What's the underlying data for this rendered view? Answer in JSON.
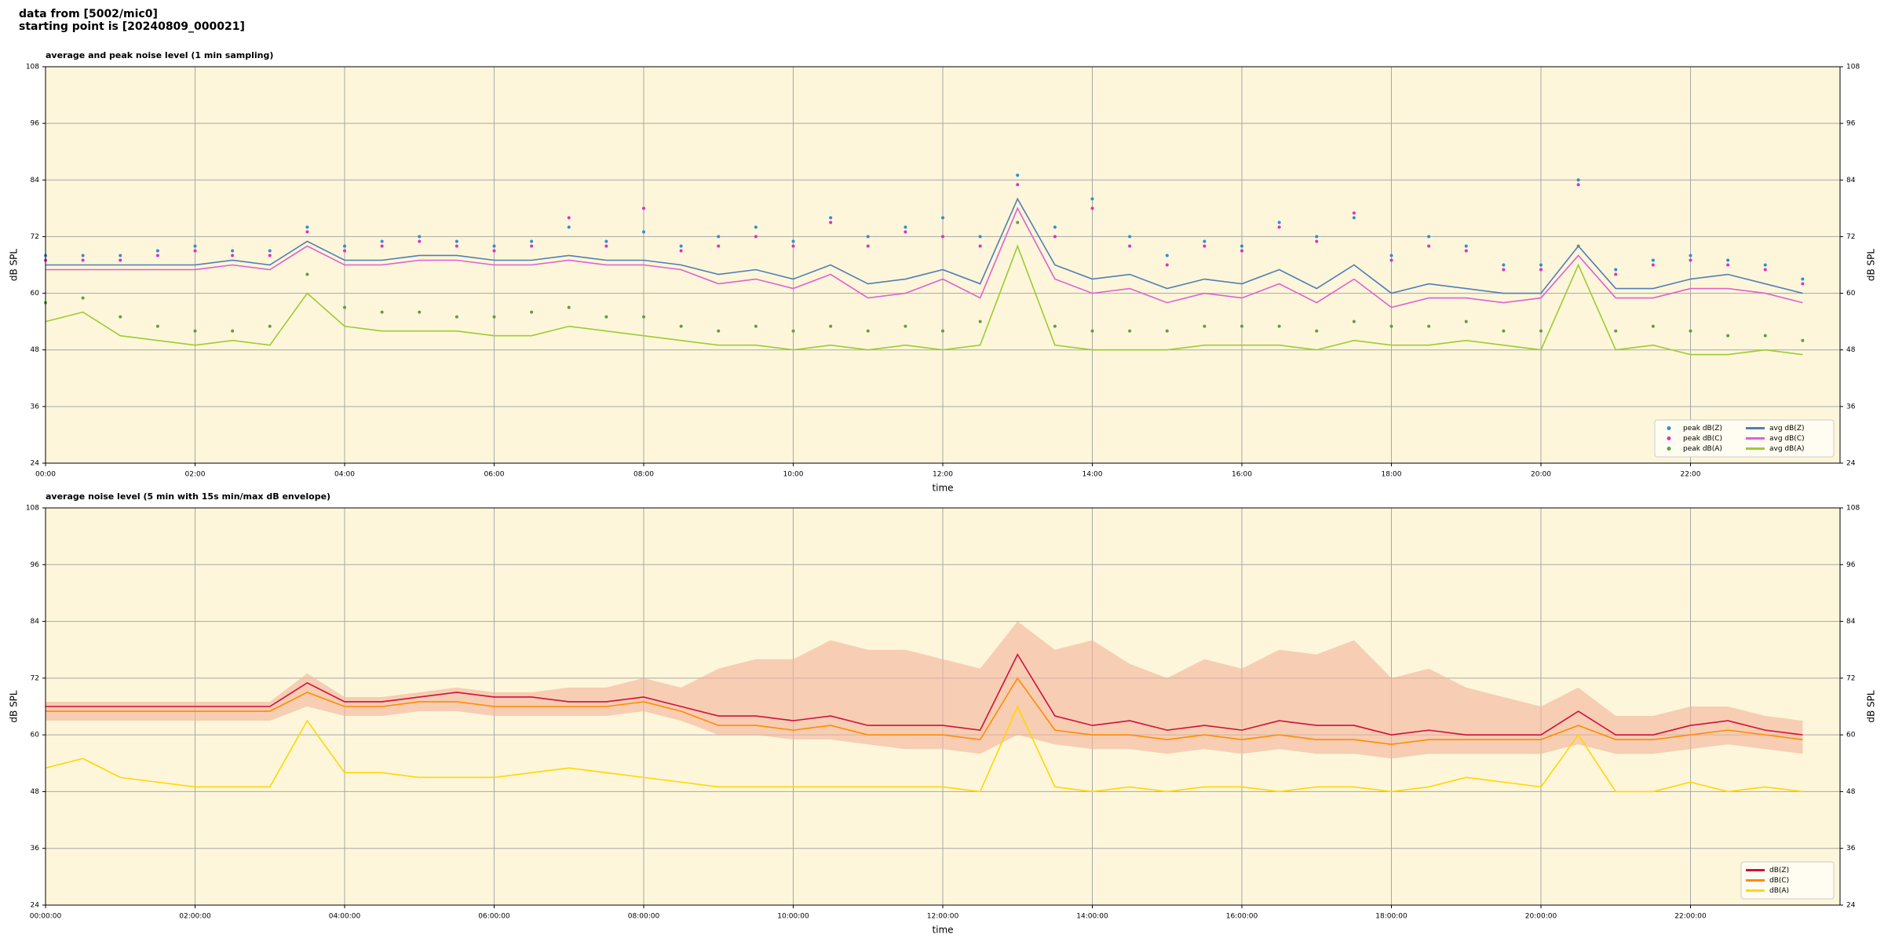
{
  "header": [
    "data from [5002/mic0]",
    "starting point is [20240809_000021]"
  ],
  "chart_data": [
    {
      "type": "line",
      "title": "average and peak noise level (1 min sampling)",
      "xlabel": "time",
      "ylabel": "dB SPL",
      "background": "#fdf6da",
      "grid": true,
      "legend": "lower right",
      "legend_ncol": 2,
      "xlim": [
        0,
        24
      ],
      "ylim": [
        24,
        108
      ],
      "yticks": [
        24,
        36,
        48,
        60,
        72,
        84,
        96,
        108
      ],
      "xticks": [
        {
          "value": 0,
          "label": "00:00"
        },
        {
          "value": 2,
          "label": "02:00"
        },
        {
          "value": 4,
          "label": "04:00"
        },
        {
          "value": 6,
          "label": "06:00"
        },
        {
          "value": 8,
          "label": "08:00"
        },
        {
          "value": 10,
          "label": "10:00"
        },
        {
          "value": 12,
          "label": "12:00"
        },
        {
          "value": 14,
          "label": "14:00"
        },
        {
          "value": 16,
          "label": "16:00"
        },
        {
          "value": 18,
          "label": "18:00"
        },
        {
          "value": 20,
          "label": "20:00"
        },
        {
          "value": 22,
          "label": "22:00"
        }
      ],
      "x": [
        0,
        0.5,
        1,
        1.5,
        2,
        2.5,
        3,
        3.5,
        4,
        4.5,
        5,
        5.5,
        6,
        6.5,
        7,
        7.5,
        8,
        8.5,
        9,
        9.5,
        10,
        10.5,
        11,
        11.5,
        12,
        12.5,
        13,
        13.5,
        14,
        14.5,
        15,
        15.5,
        16,
        16.5,
        17,
        17.5,
        18,
        18.5,
        19,
        19.5,
        20,
        20.5,
        21,
        21.5,
        22,
        22.5,
        23,
        23.5
      ],
      "series": [
        {
          "name": "peak dB(Z)",
          "kind": "scatter",
          "color": "#2f8fd0",
          "values": [
            68,
            68,
            68,
            69,
            70,
            69,
            69,
            74,
            70,
            71,
            72,
            71,
            70,
            71,
            74,
            71,
            73,
            70,
            72,
            74,
            71,
            76,
            72,
            74,
            76,
            72,
            85,
            74,
            80,
            72,
            68,
            71,
            70,
            75,
            72,
            76,
            68,
            72,
            70,
            66,
            66,
            84,
            65,
            67,
            68,
            67,
            66,
            63
          ]
        },
        {
          "name": "peak dB(C)",
          "kind": "scatter",
          "color": "#e030c0",
          "values": [
            67,
            67,
            67,
            68,
            69,
            68,
            68,
            73,
            69,
            70,
            71,
            70,
            69,
            70,
            76,
            70,
            78,
            69,
            70,
            72,
            70,
            75,
            70,
            73,
            72,
            70,
            83,
            72,
            78,
            70,
            66,
            70,
            69,
            74,
            71,
            77,
            67,
            70,
            69,
            65,
            65,
            83,
            64,
            66,
            67,
            66,
            65,
            62
          ]
        },
        {
          "name": "peak dB(A)",
          "kind": "scatter",
          "color": "#5f9e45",
          "values": [
            58,
            59,
            55,
            53,
            52,
            52,
            53,
            64,
            57,
            56,
            56,
            55,
            55,
            56,
            57,
            55,
            55,
            53,
            52,
            53,
            52,
            53,
            52,
            53,
            52,
            54,
            75,
            53,
            52,
            52,
            52,
            53,
            53,
            53,
            52,
            54,
            53,
            53,
            54,
            52,
            52,
            70,
            52,
            53,
            52,
            51,
            51,
            50
          ]
        },
        {
          "name": "avg dB(Z)",
          "kind": "line",
          "color": "#4f7fb5",
          "values": [
            66,
            66,
            66,
            66,
            66,
            67,
            66,
            71,
            67,
            67,
            68,
            68,
            67,
            67,
            68,
            67,
            67,
            66,
            64,
            65,
            63,
            66,
            62,
            63,
            65,
            62,
            80,
            66,
            63,
            64,
            61,
            63,
            62,
            65,
            61,
            66,
            60,
            62,
            61,
            60,
            60,
            70,
            61,
            61,
            63,
            64,
            62,
            60
          ]
        },
        {
          "name": "avg dB(C)",
          "kind": "line",
          "color": "#e060d0",
          "values": [
            65,
            65,
            65,
            65,
            65,
            66,
            65,
            70,
            66,
            66,
            67,
            67,
            66,
            66,
            67,
            66,
            66,
            65,
            62,
            63,
            61,
            64,
            59,
            60,
            63,
            59,
            78,
            63,
            60,
            61,
            58,
            60,
            59,
            62,
            58,
            63,
            57,
            59,
            59,
            58,
            59,
            68,
            59,
            59,
            61,
            61,
            60,
            58
          ]
        },
        {
          "name": "avg dB(A)",
          "kind": "line",
          "color": "#9acd32",
          "values": [
            54,
            56,
            51,
            50,
            49,
            50,
            49,
            60,
            53,
            52,
            52,
            52,
            51,
            51,
            53,
            52,
            51,
            50,
            49,
            49,
            48,
            49,
            48,
            49,
            48,
            49,
            70,
            49,
            48,
            48,
            48,
            49,
            49,
            49,
            48,
            50,
            49,
            49,
            50,
            49,
            48,
            66,
            48,
            49,
            47,
            47,
            48,
            47
          ]
        }
      ]
    },
    {
      "type": "line",
      "title": "average noise level (5 min with 15s min/max dB envelope)",
      "xlabel": "time",
      "ylabel": "dB SPL",
      "background": "#fdf6da",
      "grid": true,
      "legend": "lower right",
      "legend_ncol": 1,
      "xlim": [
        0,
        24
      ],
      "ylim": [
        24,
        108
      ],
      "yticks": [
        24,
        36,
        48,
        60,
        72,
        84,
        96,
        108
      ],
      "xticks": [
        {
          "value": 0,
          "label": "00:00:00"
        },
        {
          "value": 2,
          "label": "02:00:00"
        },
        {
          "value": 4,
          "label": "04:00:00"
        },
        {
          "value": 6,
          "label": "06:00:00"
        },
        {
          "value": 8,
          "label": "08:00:00"
        },
        {
          "value": 10,
          "label": "10:00:00"
        },
        {
          "value": 12,
          "label": "12:00:00"
        },
        {
          "value": 14,
          "label": "14:00:00"
        },
        {
          "value": 16,
          "label": "16:00:00"
        },
        {
          "value": 18,
          "label": "18:00:00"
        },
        {
          "value": 20,
          "label": "20:00:00"
        },
        {
          "value": 22,
          "label": "22:00:00"
        }
      ],
      "x": [
        0,
        0.5,
        1,
        1.5,
        2,
        2.5,
        3,
        3.5,
        4,
        4.5,
        5,
        5.5,
        6,
        6.5,
        7,
        7.5,
        8,
        8.5,
        9,
        9.5,
        10,
        10.5,
        11,
        11.5,
        12,
        12.5,
        13,
        13.5,
        14,
        14.5,
        15,
        15.5,
        16,
        16.5,
        17,
        17.5,
        18,
        18.5,
        19,
        19.5,
        20,
        20.5,
        21,
        21.5,
        22,
        22.5,
        23,
        23.5
      ],
      "envelope": {
        "color": "#f4b39a",
        "upper": [
          67,
          67,
          67,
          67,
          67,
          67,
          67,
          73,
          68,
          68,
          69,
          70,
          69,
          69,
          70,
          70,
          72,
          70,
          74,
          76,
          76,
          80,
          78,
          78,
          76,
          74,
          84,
          78,
          80,
          75,
          72,
          76,
          74,
          78,
          77,
          80,
          72,
          74,
          70,
          68,
          66,
          70,
          64,
          64,
          66,
          66,
          64,
          63
        ],
        "lower": [
          63,
          63,
          63,
          63,
          63,
          63,
          63,
          66,
          64,
          64,
          65,
          65,
          64,
          64,
          64,
          64,
          65,
          63,
          60,
          60,
          59,
          59,
          58,
          57,
          57,
          56,
          60,
          58,
          57,
          57,
          56,
          57,
          56,
          57,
          56,
          56,
          55,
          56,
          56,
          56,
          56,
          58,
          56,
          56,
          57,
          58,
          57,
          56
        ]
      },
      "series": [
        {
          "name": "dB(Z)",
          "kind": "line",
          "color": "#d0103a",
          "values": [
            66,
            66,
            66,
            66,
            66,
            66,
            66,
            71,
            67,
            67,
            68,
            69,
            68,
            68,
            67,
            67,
            68,
            66,
            64,
            64,
            63,
            64,
            62,
            62,
            62,
            61,
            77,
            64,
            62,
            63,
            61,
            62,
            61,
            63,
            62,
            62,
            60,
            61,
            60,
            60,
            60,
            65,
            60,
            60,
            62,
            63,
            61,
            60
          ]
        },
        {
          "name": "dB(C)",
          "kind": "line",
          "color": "#ff8c00",
          "values": [
            65,
            65,
            65,
            65,
            65,
            65,
            65,
            69,
            66,
            66,
            67,
            67,
            66,
            66,
            66,
            66,
            67,
            65,
            62,
            62,
            61,
            62,
            60,
            60,
            60,
            59,
            72,
            61,
            60,
            60,
            59,
            60,
            59,
            60,
            59,
            59,
            58,
            59,
            59,
            59,
            59,
            62,
            59,
            59,
            60,
            61,
            60,
            59
          ]
        },
        {
          "name": "dB(A)",
          "kind": "line",
          "color": "#ffd700",
          "values": [
            53,
            55,
            51,
            50,
            49,
            49,
            49,
            63,
            52,
            52,
            51,
            51,
            51,
            52,
            53,
            52,
            51,
            50,
            49,
            49,
            49,
            49,
            49,
            49,
            49,
            48,
            66,
            49,
            48,
            49,
            48,
            49,
            49,
            48,
            49,
            49,
            48,
            49,
            51,
            50,
            49,
            60,
            48,
            48,
            50,
            48,
            49,
            48
          ]
        }
      ]
    }
  ]
}
